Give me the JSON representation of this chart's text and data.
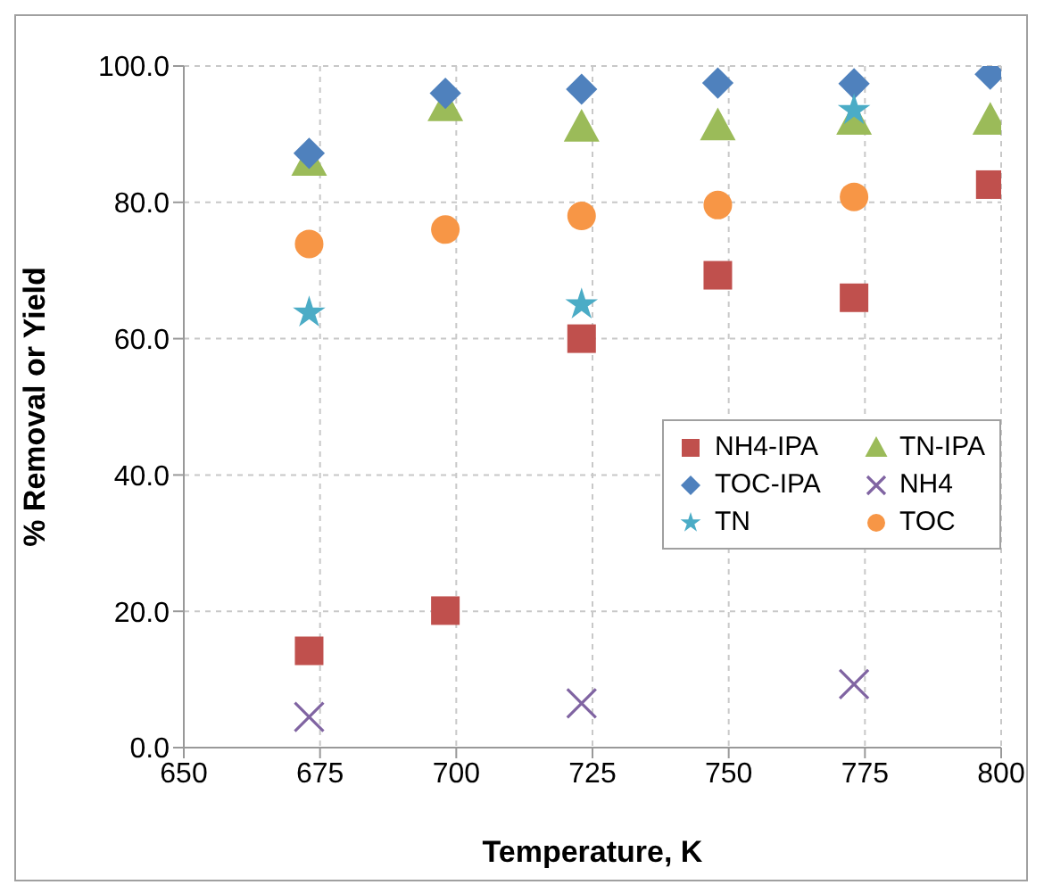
{
  "chart_data": {
    "type": "scatter",
    "xlabel": "Temperature, K",
    "ylabel": "% Removal or Yield",
    "xlim": [
      650,
      800
    ],
    "xticks": [
      650,
      675,
      700,
      725,
      750,
      775,
      800
    ],
    "ylim": [
      0,
      100
    ],
    "yticks": [
      {
        "value": 0,
        "label": "0.0"
      },
      {
        "value": 20,
        "label": "20.0"
      },
      {
        "value": 40,
        "label": "40.0"
      },
      {
        "value": 60,
        "label": "60.0"
      },
      {
        "value": 80,
        "label": "80.0"
      },
      {
        "value": 100,
        "label": "100.0"
      }
    ],
    "grid": true,
    "legend": "right",
    "series": [
      {
        "name": "NH4-IPA",
        "color": "#c0504d",
        "marker": "square",
        "x": [
          673,
          698,
          723,
          748,
          773,
          798
        ],
        "values": [
          14.2,
          20.1,
          60.0,
          69.3,
          66.0,
          82.6
        ]
      },
      {
        "name": "TN-IPA",
        "color": "#9bbb59",
        "marker": "triangle",
        "x": [
          673,
          698,
          723,
          748,
          773,
          798
        ],
        "values": [
          86.0,
          94.0,
          91.0,
          91.2,
          92.0,
          92.0
        ]
      },
      {
        "name": "TOC-IPA",
        "color": "#4f81bd",
        "marker": "diamond",
        "x": [
          673,
          698,
          723,
          748,
          773,
          798
        ],
        "values": [
          87.2,
          96.0,
          96.6,
          97.5,
          97.4,
          98.8
        ]
      },
      {
        "name": "NH4",
        "color": "#8064a2",
        "marker": "cross",
        "x": [
          673,
          723,
          773
        ],
        "values": [
          4.5,
          6.5,
          9.3
        ]
      },
      {
        "name": "TN",
        "color": "#4bacc6",
        "marker": "star",
        "x": [
          673,
          723,
          773
        ],
        "values": [
          63.8,
          65.0,
          93.5
        ]
      },
      {
        "name": "TOC",
        "color": "#f79646",
        "marker": "circle",
        "x": [
          673,
          698,
          723,
          748,
          773
        ],
        "values": [
          73.9,
          76.0,
          78.0,
          79.6,
          80.8
        ]
      }
    ]
  }
}
